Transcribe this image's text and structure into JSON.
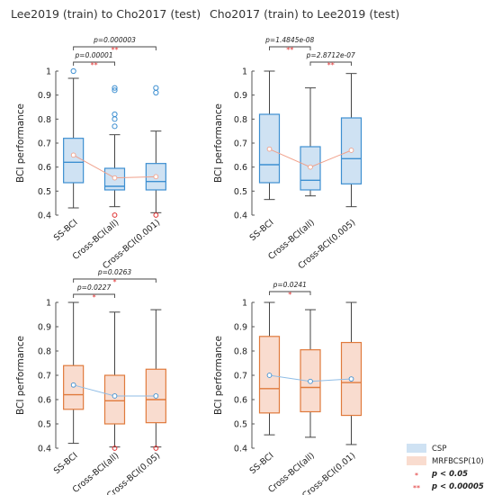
{
  "colors": {
    "csp_fill": "#cfe2f3",
    "csp_line": "#3d8fd1",
    "csp_outlier": "#3d8fd1",
    "mrf_fill": "#f9dccf",
    "mrf_line": "#e07a3c",
    "mean_line_top": "#f0a08a",
    "mean_line_bottom": "#8fbde6",
    "whisker": "#444444",
    "sig_star": "#e03030"
  },
  "legend": {
    "items": [
      {
        "swatch": "csp",
        "label": "CSP"
      },
      {
        "swatch": "mrf",
        "label": "MRFBCSP(10)"
      },
      {
        "star": "*",
        "label": "p < 0.05"
      },
      {
        "star": "**",
        "label": "p < 0.00005"
      }
    ]
  },
  "chart_data": [
    {
      "type": "box",
      "title": "Lee2019 (train) to Cho2017 (test)",
      "ylabel": "BCI performance",
      "ylim": [
        0.4,
        1.0
      ],
      "yticks": [
        "0.4",
        "0.5",
        "0.6",
        "0.7",
        "0.8",
        "0.9",
        "1"
      ],
      "method": "CSP",
      "categories": [
        "SS-BCI",
        "Cross-BCI(all)",
        "Cross-BCI(0.001)"
      ],
      "boxes": [
        {
          "min": 0.43,
          "q1": 0.535,
          "median": 0.62,
          "q3": 0.72,
          "max": 0.97,
          "mean": 0.65,
          "outliers_high": [
            1.0
          ],
          "outliers_low": []
        },
        {
          "min": 0.435,
          "q1": 0.505,
          "median": 0.52,
          "q3": 0.595,
          "max": 0.735,
          "mean": 0.555,
          "outliers_high": [
            0.77,
            0.8,
            0.82,
            0.92,
            0.93
          ],
          "outliers_low": [
            0.4
          ]
        },
        {
          "min": 0.41,
          "q1": 0.505,
          "median": 0.54,
          "q3": 0.615,
          "max": 0.75,
          "mean": 0.56,
          "outliers_high": [
            0.91,
            0.93
          ],
          "outliers_low": [
            0.4
          ]
        }
      ],
      "significance": [
        {
          "from": 0,
          "to": 2,
          "label": "p=0.000003",
          "stars": "**"
        },
        {
          "from": 0,
          "to": 1,
          "label": "p=0.00001",
          "stars": "**"
        }
      ]
    },
    {
      "type": "box",
      "title": "Cho2017 (train) to Lee2019 (test)",
      "ylabel": "BCI performance",
      "ylim": [
        0.4,
        1.0
      ],
      "yticks": [
        "0.4",
        "0.5",
        "0.6",
        "0.7",
        "0.8",
        "0.9",
        "1"
      ],
      "method": "CSP",
      "categories": [
        "SS-BCI",
        "Cross-BCI(all)",
        "Cross-BCI(0.005)"
      ],
      "boxes": [
        {
          "min": 0.465,
          "q1": 0.535,
          "median": 0.61,
          "q3": 0.82,
          "max": 1.0,
          "mean": 0.675,
          "outliers_high": [],
          "outliers_low": []
        },
        {
          "min": 0.48,
          "q1": 0.505,
          "median": 0.545,
          "q3": 0.685,
          "max": 0.93,
          "mean": 0.6,
          "outliers_high": [],
          "outliers_low": []
        },
        {
          "min": 0.435,
          "q1": 0.53,
          "median": 0.635,
          "q3": 0.805,
          "max": 0.99,
          "mean": 0.67,
          "outliers_high": [],
          "outliers_low": []
        }
      ],
      "significance": [
        {
          "from": 0,
          "to": 1,
          "label": "p=1.4845e-08",
          "stars": "**"
        },
        {
          "from": 1,
          "to": 2,
          "label": "p=2.8712e-07",
          "stars": "**"
        }
      ]
    },
    {
      "type": "box",
      "title": "",
      "ylabel": "BCI performance",
      "ylim": [
        0.4,
        1.0
      ],
      "yticks": [
        "0.4",
        "0.5",
        "0.6",
        "0.7",
        "0.8",
        "0.9",
        "1"
      ],
      "method": "MRFBCSP(10)",
      "categories": [
        "SS-BCI",
        "Cross-BCI(all)",
        "Cross-BCI(0.05)"
      ],
      "boxes": [
        {
          "min": 0.42,
          "q1": 0.56,
          "median": 0.62,
          "q3": 0.74,
          "max": 1.0,
          "mean": 0.66,
          "outliers_high": [],
          "outliers_low": []
        },
        {
          "min": 0.405,
          "q1": 0.5,
          "median": 0.595,
          "q3": 0.7,
          "max": 0.96,
          "mean": 0.615,
          "outliers_high": [],
          "outliers_low": [
            0.4
          ]
        },
        {
          "min": 0.405,
          "q1": 0.505,
          "median": 0.6,
          "q3": 0.725,
          "max": 0.97,
          "mean": 0.615,
          "outliers_high": [],
          "outliers_low": [
            0.4
          ]
        }
      ],
      "significance": [
        {
          "from": 0,
          "to": 2,
          "label": "p=0.0263",
          "stars": "*"
        },
        {
          "from": 0,
          "to": 1,
          "label": "p=0.0227",
          "stars": "*"
        }
      ]
    },
    {
      "type": "box",
      "title": "",
      "ylabel": "BCI performance",
      "ylim": [
        0.4,
        1.0
      ],
      "yticks": [
        "0.4",
        "0.5",
        "0.6",
        "0.7",
        "0.8",
        "0.9",
        "1"
      ],
      "method": "MRFBCSP(10)",
      "categories": [
        "SS-BCI",
        "Cross-BCI(all)",
        "Cross-BCI(0.01)"
      ],
      "boxes": [
        {
          "min": 0.455,
          "q1": 0.545,
          "median": 0.645,
          "q3": 0.86,
          "max": 1.0,
          "mean": 0.7,
          "outliers_high": [],
          "outliers_low": []
        },
        {
          "min": 0.445,
          "q1": 0.55,
          "median": 0.65,
          "q3": 0.805,
          "max": 0.97,
          "mean": 0.675,
          "outliers_high": [],
          "outliers_low": []
        },
        {
          "min": 0.415,
          "q1": 0.535,
          "median": 0.67,
          "q3": 0.835,
          "max": 1.0,
          "mean": 0.685,
          "outliers_high": [],
          "outliers_low": []
        }
      ],
      "significance": [
        {
          "from": 0,
          "to": 1,
          "label": "p=0.0241",
          "stars": "*"
        }
      ]
    }
  ]
}
